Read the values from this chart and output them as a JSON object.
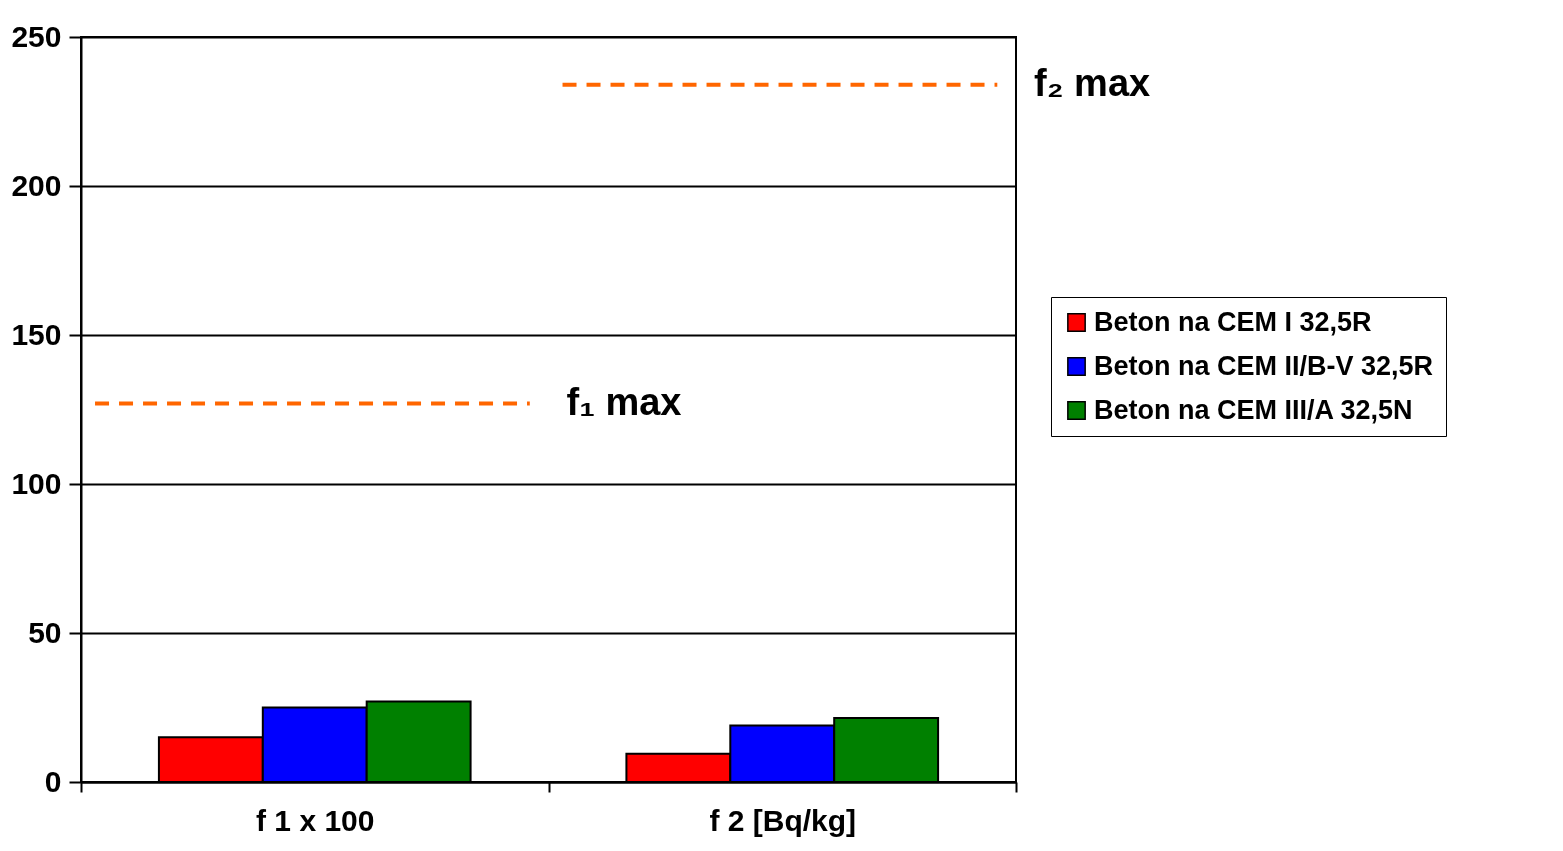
{
  "chart_data": {
    "type": "bar",
    "categories": [
      "f 1 x 100",
      "f 2 [Bq/kg]"
    ],
    "series": [
      {
        "name": "Beton na CEM I 32,5R",
        "color": "#ff0000",
        "values": [
          15,
          9.5
        ]
      },
      {
        "name": "Beton na CEM II/B-V 32,5R",
        "color": "#0000ff",
        "values": [
          25,
          19
        ]
      },
      {
        "name": "Beton na CEM III/A 32,5N",
        "color": "#008000",
        "values": [
          27,
          21.5
        ]
      }
    ],
    "ylim": [
      0,
      250
    ],
    "yticks": [
      0,
      50,
      100,
      150,
      200,
      250
    ],
    "grid": "y",
    "legend": "right",
    "ref_lines": [
      {
        "axis": "y",
        "value": 127,
        "label": "f₁ max",
        "color": "#ff6600",
        "line_style": "dashed"
      },
      {
        "axis": "y",
        "value": 234,
        "label": "f₂ max",
        "color": "#ff6600",
        "line_style": "dashed"
      }
    ]
  }
}
